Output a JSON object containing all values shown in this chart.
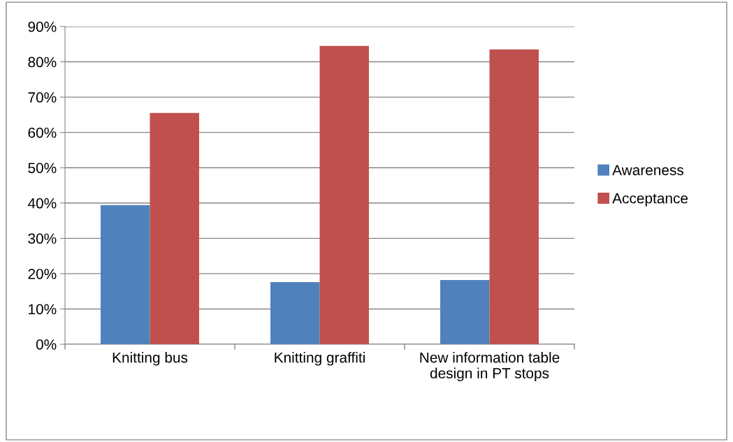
{
  "chart_data": {
    "type": "bar",
    "categories": [
      "Knitting bus",
      "Knitting graffiti",
      "New information table design in PT stops"
    ],
    "series": [
      {
        "name": "Awareness",
        "color": "#4f81bd",
        "values": [
          39.4,
          17.6,
          18.2
        ]
      },
      {
        "name": "Acceptance",
        "color": "#c0504d",
        "values": [
          65.5,
          84.5,
          83.5
        ]
      }
    ],
    "ylim": [
      0,
      90
    ],
    "yticks": [
      {
        "value": 0,
        "label": "0%"
      },
      {
        "value": 10,
        "label": "10%"
      },
      {
        "value": 20,
        "label": "20%"
      },
      {
        "value": 30,
        "label": "30%"
      },
      {
        "value": 40,
        "label": "40%"
      },
      {
        "value": 50,
        "label": "50%"
      },
      {
        "value": 60,
        "label": "60%"
      },
      {
        "value": 70,
        "label": "70%"
      },
      {
        "value": 80,
        "label": "80%"
      },
      {
        "value": 90,
        "label": "90%"
      }
    ],
    "grid": "y",
    "legend": "right"
  }
}
